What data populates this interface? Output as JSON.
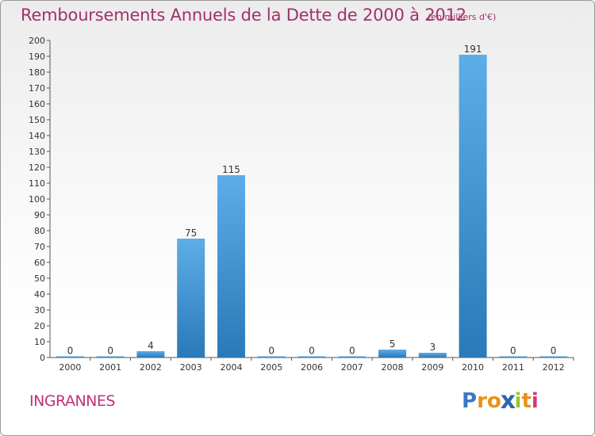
{
  "chart_data": {
    "type": "bar",
    "title": "Remboursements Annuels de la Dette de 2000 à 2012",
    "subtitle": "(en milliers d'€)",
    "xlabel": "",
    "ylabel": "",
    "categories": [
      "2000",
      "2001",
      "2002",
      "2003",
      "2004",
      "2005",
      "2006",
      "2007",
      "2008",
      "2009",
      "2010",
      "2011",
      "2012"
    ],
    "values": [
      0,
      0,
      4,
      75,
      115,
      0,
      0,
      0,
      5,
      3,
      191,
      0,
      0
    ],
    "ylim": [
      0,
      200
    ],
    "yticks": [
      0,
      10,
      20,
      30,
      40,
      50,
      60,
      70,
      80,
      90,
      100,
      110,
      120,
      130,
      140,
      150,
      160,
      170,
      180,
      190,
      200
    ],
    "grid": false,
    "bar_color": "#3a8fd6"
  },
  "labels": {
    "commune": "INGRANNES"
  },
  "logo": {
    "letters": [
      {
        "ch": "P",
        "color": "#3a78c4"
      },
      {
        "ch": "r",
        "color": "#e8921a"
      },
      {
        "ch": "o",
        "color": "#e8921a"
      },
      {
        "ch": "x",
        "color": "#2f66b0"
      },
      {
        "ch": "i",
        "color": "#9cc43a"
      },
      {
        "ch": "t",
        "color": "#e8921a"
      },
      {
        "ch": "i",
        "color": "#d03a7a"
      }
    ]
  }
}
